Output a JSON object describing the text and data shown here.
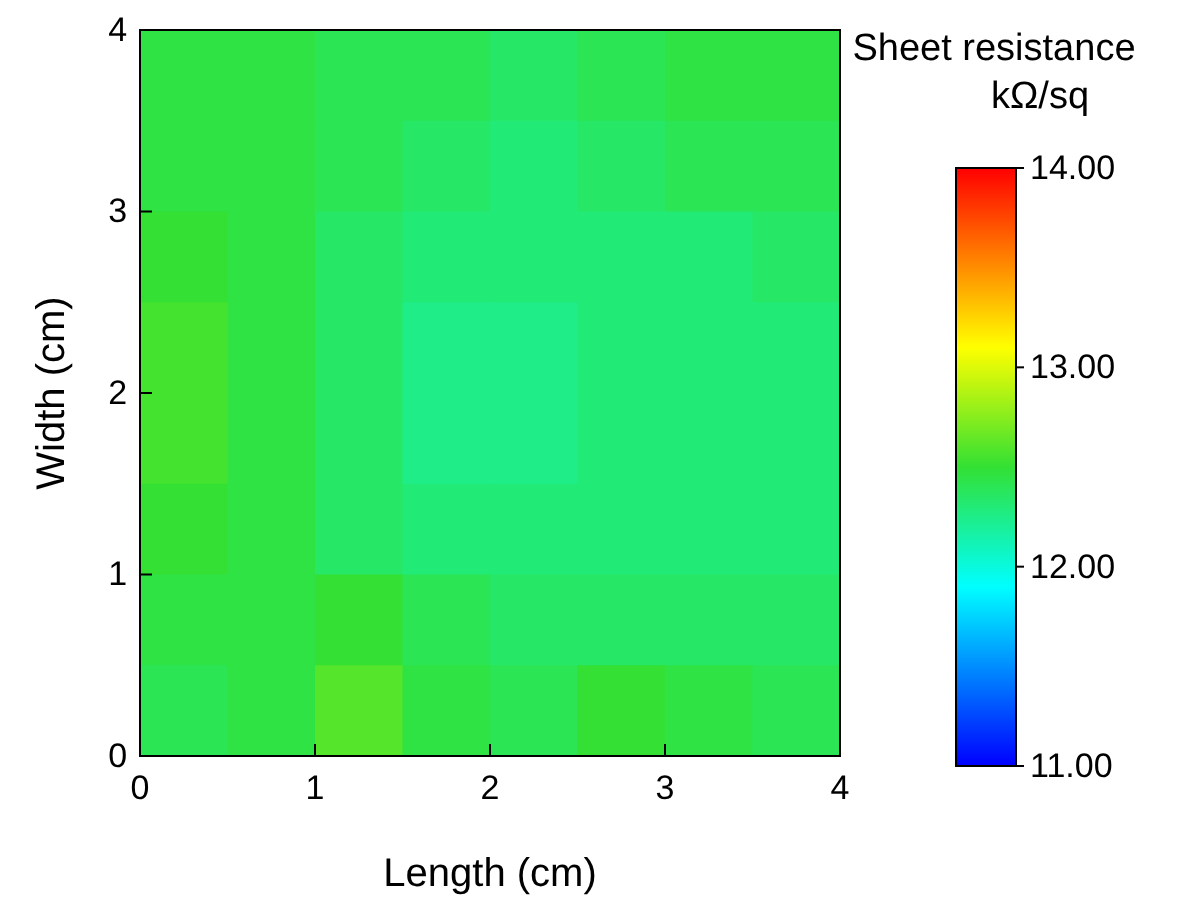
{
  "chart_data": {
    "type": "heatmap",
    "xlabel": "Length (cm)",
    "ylabel": "Width (cm)",
    "clabel": "Sheet resistance kΩ/sq",
    "xlim": [
      0,
      4
    ],
    "ylim": [
      0,
      4
    ],
    "xticks": [
      0,
      1,
      2,
      3,
      4
    ],
    "yticks": [
      0,
      1,
      2,
      3,
      4
    ],
    "cells": [
      [
        12.45,
        12.45,
        12.4,
        12.4,
        12.35,
        12.4,
        12.45,
        12.45
      ],
      [
        12.45,
        12.45,
        12.4,
        12.35,
        12.3,
        12.35,
        12.4,
        12.4
      ],
      [
        12.5,
        12.45,
        12.35,
        12.3,
        12.3,
        12.3,
        12.3,
        12.35
      ],
      [
        12.55,
        12.45,
        12.35,
        12.25,
        12.25,
        12.3,
        12.3,
        12.3
      ],
      [
        12.55,
        12.45,
        12.35,
        12.25,
        12.25,
        12.3,
        12.3,
        12.3
      ],
      [
        12.5,
        12.45,
        12.35,
        12.3,
        12.3,
        12.3,
        12.3,
        12.3
      ],
      [
        12.45,
        12.45,
        12.5,
        12.4,
        12.35,
        12.35,
        12.35,
        12.35
      ],
      [
        12.4,
        12.45,
        12.6,
        12.45,
        12.4,
        12.5,
        12.45,
        12.4
      ]
    ],
    "clim": [
      11,
      14
    ],
    "cticks": [
      {
        "value": 11,
        "label": "11.00"
      },
      {
        "value": 12,
        "label": "12.00"
      },
      {
        "value": 13,
        "label": "13.00"
      },
      {
        "value": 14,
        "label": "14.00"
      }
    ]
  }
}
